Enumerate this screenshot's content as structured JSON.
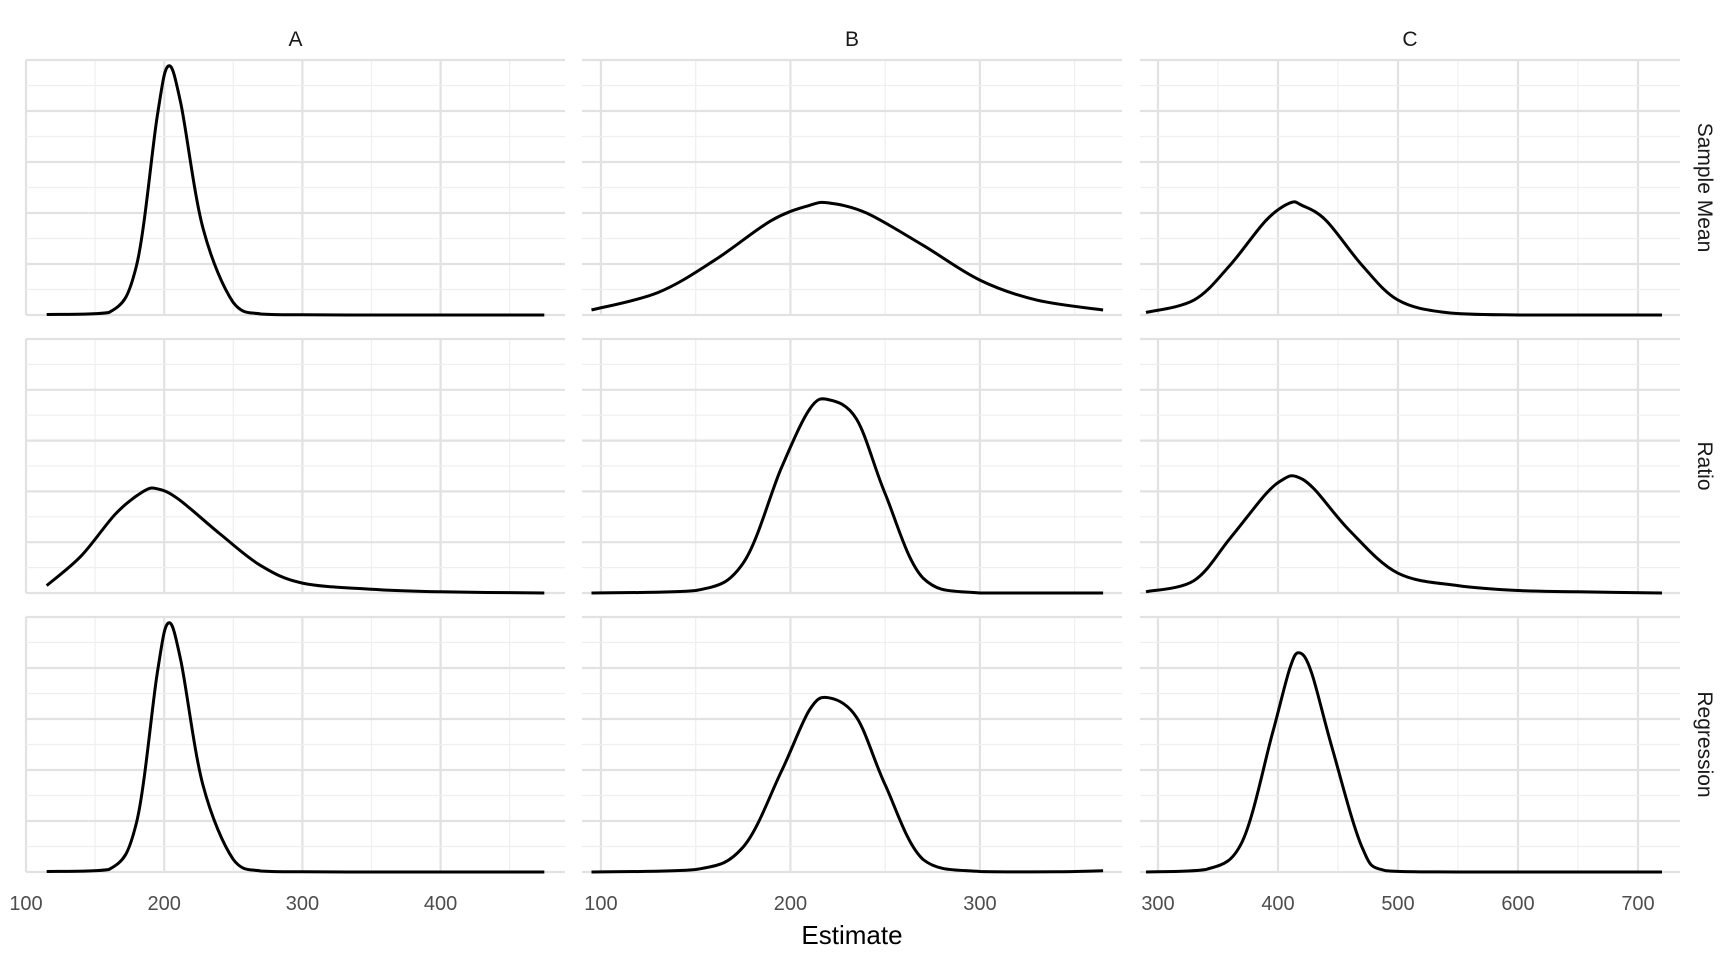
{
  "chart_data": {
    "type": "line",
    "xlabel": "Estimate",
    "ylabel": "",
    "columns": [
      "A",
      "B",
      "C"
    ],
    "rows": [
      "Sample Mean",
      "Ratio",
      "Regression"
    ],
    "grid": true,
    "x_ticks": {
      "A": [
        100,
        200,
        300,
        400
      ],
      "B": [
        100,
        200,
        300
      ],
      "C": [
        300,
        400,
        500,
        600,
        700
      ]
    },
    "x_ranges": {
      "A": [
        100,
        490
      ],
      "B": [
        90,
        375
      ],
      "C": [
        285,
        735
      ]
    },
    "panels": [
      {
        "column": "A",
        "row": "Sample Mean",
        "curve": {
          "x": [
            115,
            160,
            180,
            195,
            203,
            212,
            228,
            250,
            270,
            300,
            350,
            400,
            475
          ],
          "y": [
            0.2,
            1,
            20,
            80,
            100,
            85,
            35,
            5,
            0.4,
            0.1,
            0,
            0,
            0
          ]
        }
      },
      {
        "column": "B",
        "row": "Sample Mean",
        "curve": {
          "x": [
            95,
            130,
            160,
            190,
            210,
            220,
            240,
            270,
            300,
            330,
            365
          ],
          "y": [
            2,
            9,
            22,
            38,
            44,
            45,
            41,
            28,
            14,
            6,
            2
          ]
        }
      },
      {
        "column": "C",
        "row": "Sample Mean",
        "curve": {
          "x": [
            290,
            330,
            360,
            390,
            410,
            420,
            440,
            470,
            500,
            540,
            600,
            650,
            720
          ],
          "y": [
            1,
            6,
            20,
            38,
            45,
            44,
            38,
            20,
            6,
            1,
            0,
            0,
            0
          ]
        }
      },
      {
        "column": "A",
        "row": "Ratio",
        "curve": {
          "x": [
            115,
            140,
            165,
            185,
            195,
            210,
            240,
            270,
            300,
            350,
            400,
            475
          ],
          "y": [
            3,
            15,
            32,
            41,
            42,
            38,
            24,
            11,
            4,
            1.5,
            0.5,
            0
          ]
        }
      },
      {
        "column": "B",
        "row": "Ratio",
        "curve": {
          "x": [
            95,
            150,
            175,
            195,
            210,
            220,
            235,
            250,
            270,
            300,
            365
          ],
          "y": [
            0,
            1,
            12,
            50,
            74,
            78,
            70,
            40,
            6,
            0,
            0
          ]
        }
      },
      {
        "column": "C",
        "row": "Ratio",
        "curve": {
          "x": [
            290,
            330,
            360,
            390,
            405,
            415,
            430,
            460,
            500,
            550,
            600,
            650,
            720
          ],
          "y": [
            0.5,
            5,
            22,
            40,
            46,
            47,
            42,
            25,
            8,
            3,
            1,
            0.5,
            0
          ]
        }
      },
      {
        "column": "A",
        "row": "Regression",
        "curve": {
          "x": [
            115,
            160,
            180,
            195,
            203,
            212,
            228,
            250,
            270,
            300,
            350,
            400,
            475
          ],
          "y": [
            0.2,
            1,
            20,
            80,
            100,
            85,
            35,
            5,
            0.4,
            0.1,
            0,
            0,
            0
          ]
        }
      },
      {
        "column": "B",
        "row": "Regression",
        "curve": {
          "x": [
            95,
            150,
            175,
            195,
            210,
            220,
            235,
            250,
            270,
            300,
            340,
            365
          ],
          "y": [
            0,
            1,
            10,
            40,
            65,
            70,
            62,
            35,
            5,
            0.2,
            0.1,
            0.5
          ]
        }
      },
      {
        "column": "C",
        "row": "Regression",
        "curve": {
          "x": [
            290,
            340,
            370,
            395,
            410,
            418,
            428,
            445,
            470,
            490,
            550,
            720
          ],
          "y": [
            0,
            1,
            12,
            55,
            82,
            88,
            80,
            50,
            10,
            0.5,
            0,
            0
          ]
        }
      }
    ],
    "colors": {
      "curve": "#000000",
      "grid_major": "#e2e2e2",
      "grid_minor": "#efefef",
      "tick_label": "#4d4d4d",
      "strip_text": "#1a1a1a",
      "axis_title": "#000000"
    }
  }
}
